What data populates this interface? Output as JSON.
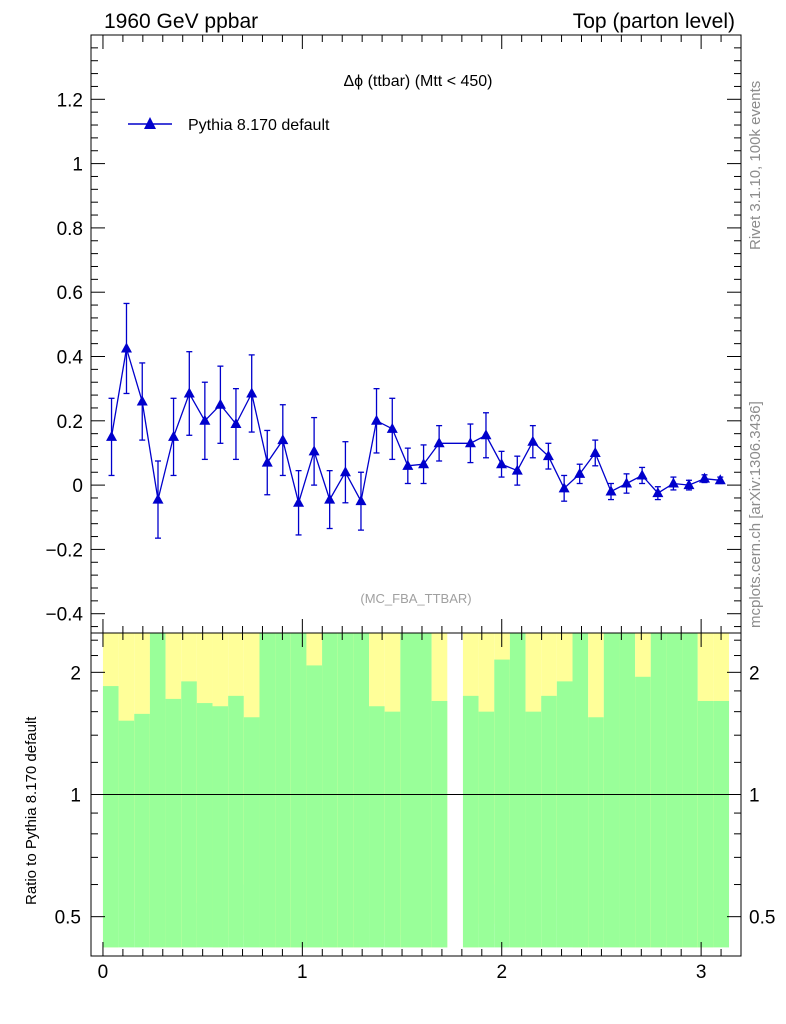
{
  "header": {
    "left": "1960 GeV ppbar",
    "right": "Top (parton level)"
  },
  "side_text": {
    "rivet": "Rivet 3.1.10,  100k events",
    "mcplots": "mcplots.cern.ch [arXiv:1306.3436]"
  },
  "watermark": "(MC_FBA_TTBAR)",
  "chart_data": [
    {
      "type": "line",
      "title": "Δϕ (ttbar) (Mtt < 450)",
      "xlabel": "",
      "ylabel": "",
      "xlim": [
        -0.06,
        3.2
      ],
      "ylim": [
        -0.46,
        1.4
      ],
      "yticks": [
        -0.4,
        -0.2,
        0,
        0.2,
        0.4,
        0.6,
        0.8,
        1,
        1.2
      ],
      "ytick_labels": [
        "−0.4",
        "−0.2",
        "0",
        "0.2",
        "0.4",
        "0.6",
        "0.8",
        "1",
        "1.2"
      ],
      "legend": "top-left",
      "series": [
        {
          "name": "Pythia 8.170 default",
          "color": "#0000cc",
          "marker": "triangle",
          "x": [
            0.043,
            0.118,
            0.197,
            0.276,
            0.354,
            0.433,
            0.511,
            0.589,
            0.667,
            0.746,
            0.824,
            0.902,
            0.981,
            1.059,
            1.137,
            1.216,
            1.294,
            1.372,
            1.451,
            1.529,
            1.608,
            1.686,
            1.843,
            1.921,
            1.999,
            2.078,
            2.156,
            2.234,
            2.313,
            2.391,
            2.469,
            2.548,
            2.626,
            2.704,
            2.783,
            2.861,
            2.939,
            3.017,
            3.096
          ],
          "y": [
            0.15,
            0.425,
            0.26,
            -0.045,
            0.15,
            0.285,
            0.2,
            0.25,
            0.19,
            0.285,
            0.07,
            0.14,
            -0.055,
            0.105,
            -0.045,
            0.04,
            -0.05,
            0.2,
            0.175,
            0.06,
            0.065,
            0.13,
            0.13,
            0.155,
            0.065,
            0.045,
            0.135,
            0.09,
            -0.01,
            0.035,
            0.1,
            -0.02,
            0.005,
            0.03,
            -0.025,
            0.005,
            0.0,
            0.02,
            0.015
          ],
          "yerr": [
            0.12,
            0.14,
            0.12,
            0.12,
            0.12,
            0.13,
            0.12,
            0.12,
            0.11,
            0.12,
            0.1,
            0.11,
            0.1,
            0.105,
            0.09,
            0.095,
            0.09,
            0.1,
            0.095,
            0.055,
            0.06,
            0.055,
            0.06,
            0.07,
            0.04,
            0.045,
            0.05,
            0.04,
            0.04,
            0.03,
            0.04,
            0.025,
            0.03,
            0.025,
            0.02,
            0.02,
            0.015,
            0.012,
            0.01
          ]
        }
      ]
    },
    {
      "type": "area",
      "ylabel": "Ratio to Pythia 8.170 default",
      "xlabel": "",
      "xlim": [
        -0.06,
        3.2
      ],
      "ylim": [
        0.4,
        2.5
      ],
      "yscale": "log",
      "xticks": [
        0,
        1,
        2,
        3
      ],
      "xtick_labels": [
        "0",
        "1",
        "2",
        "3"
      ],
      "yticks": [
        0.5,
        1,
        2
      ],
      "ytick_labels": [
        "0.5",
        "1",
        "2"
      ],
      "reference_line": 1,
      "band_colors": {
        "inner": "#99ff99",
        "outer": "#ffff99"
      },
      "bins": {
        "x_lo": [
          0.0,
          0.0785,
          0.157,
          0.2355,
          0.314,
          0.3925,
          0.471,
          0.5495,
          0.628,
          0.7065,
          0.785,
          0.8635,
          0.942,
          1.0205,
          1.099,
          1.1775,
          1.256,
          1.3345,
          1.413,
          1.4915,
          1.57,
          1.6485,
          1.8055,
          1.884,
          1.9625,
          2.041,
          2.1195,
          2.198,
          2.2765,
          2.355,
          2.4335,
          2.512,
          2.5905,
          2.669,
          2.7475,
          2.826,
          2.9045,
          2.983,
          3.0615
        ],
        "x_hi": [
          0.0785,
          0.157,
          0.2355,
          0.314,
          0.3925,
          0.471,
          0.5495,
          0.628,
          0.7065,
          0.785,
          0.8635,
          0.942,
          1.0205,
          1.099,
          1.1775,
          1.256,
          1.3345,
          1.413,
          1.4915,
          1.57,
          1.6485,
          1.727,
          1.884,
          1.9625,
          2.041,
          2.1195,
          2.198,
          2.2765,
          2.355,
          2.4335,
          2.512,
          2.5905,
          2.669,
          2.7475,
          2.826,
          2.9045,
          2.983,
          3.0615,
          3.14
        ],
        "inner_lo": [
          0.42,
          0.42,
          0.42,
          0.42,
          0.42,
          0.42,
          0.42,
          0.42,
          0.42,
          0.42,
          0.42,
          0.42,
          0.42,
          0.42,
          0.42,
          0.42,
          0.42,
          0.42,
          0.42,
          0.42,
          0.42,
          0.42,
          0.42,
          0.42,
          0.42,
          0.42,
          0.42,
          0.42,
          0.42,
          0.42,
          0.42,
          0.42,
          0.42,
          0.42,
          0.42,
          0.42,
          0.42,
          0.42,
          0.42
        ],
        "inner_hi": [
          1.85,
          1.52,
          1.58,
          2.5,
          1.72,
          1.9,
          1.68,
          1.65,
          1.75,
          1.55,
          2.5,
          2.5,
          2.5,
          2.08,
          2.5,
          2.5,
          2.5,
          1.65,
          1.6,
          2.5,
          2.5,
          1.7,
          1.75,
          1.6,
          2.15,
          2.5,
          1.6,
          1.75,
          1.9,
          2.5,
          1.55,
          2.5,
          2.5,
          1.95,
          2.5,
          2.5,
          2.5,
          1.7,
          1.7
        ],
        "outer_lo": [
          0.42,
          0.7,
          0.52,
          0.42,
          0.42,
          0.42,
          0.54,
          0.42,
          0.45,
          0.6,
          0.42,
          0.42,
          0.42,
          0.42,
          0.42,
          0.42,
          0.42,
          0.51,
          0.45,
          0.42,
          0.42,
          0.42,
          0.42,
          0.48,
          0.6,
          0.42,
          0.42,
          0.62,
          0.55,
          0.42,
          0.42,
          0.65,
          0.42,
          0.42,
          0.42,
          0.42,
          0.42,
          0.42,
          0.58
        ],
        "outer_hi": [
          2.5,
          2.5,
          2.5,
          2.5,
          2.5,
          2.5,
          2.5,
          2.5,
          2.5,
          2.5,
          2.5,
          2.5,
          2.5,
          2.5,
          2.5,
          2.5,
          2.5,
          2.5,
          2.5,
          2.5,
          2.5,
          2.5,
          2.5,
          2.5,
          2.5,
          2.5,
          2.5,
          2.5,
          2.5,
          2.5,
          2.5,
          2.5,
          2.5,
          2.5,
          2.5,
          2.5,
          2.5,
          2.5,
          2.5
        ],
        "inner_hi_note": ""
      }
    }
  ]
}
